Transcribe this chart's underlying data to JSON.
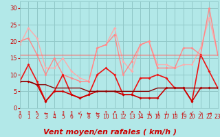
{
  "bg_color": "#b2e8e8",
  "grid_color": "#90c8c8",
  "xlabel": "Vent moyen/en rafales ( km/h )",
  "xlabel_color": "#cc0000",
  "xlabel_fontsize": 8,
  "tick_color": "#cc0000",
  "ylim": [
    0,
    32
  ],
  "xlim": [
    0,
    23
  ],
  "yticks": [
    0,
    5,
    10,
    15,
    20,
    25,
    30
  ],
  "xticks": [
    0,
    1,
    2,
    3,
    4,
    5,
    6,
    7,
    8,
    9,
    10,
    11,
    12,
    13,
    14,
    15,
    16,
    17,
    18,
    19,
    20,
    21,
    22,
    23
  ],
  "lines": [
    {
      "y": [
        19,
        24,
        21,
        12,
        12,
        15,
        11,
        9,
        8,
        18,
        19,
        24,
        14,
        11,
        19,
        20,
        13,
        13,
        12,
        13,
        13,
        18,
        27,
        16
      ],
      "color": "#ffaaaa",
      "lw": 1.0,
      "marker": "D",
      "ms": 2.0,
      "alpha": 1.0
    },
    {
      "y": [
        20,
        21,
        16,
        10,
        15,
        10,
        9,
        8,
        8,
        18,
        19,
        22,
        10,
        14,
        19,
        20,
        12,
        12,
        12,
        18,
        18,
        16,
        30,
        16
      ],
      "color": "#ff8888",
      "lw": 1.0,
      "marker": "D",
      "ms": 2.0,
      "alpha": 1.0
    },
    {
      "y": [
        8,
        13,
        8,
        2,
        5,
        10,
        4,
        3,
        4,
        10,
        12,
        10,
        4,
        4,
        9,
        9,
        10,
        9,
        6,
        6,
        2,
        16,
        11,
        6
      ],
      "color": "#ee1111",
      "lw": 1.2,
      "marker": "D",
      "ms": 2.0,
      "alpha": 1.0
    },
    {
      "y": [
        8,
        8,
        7,
        2,
        5,
        5,
        4,
        3,
        4,
        5,
        5,
        5,
        4,
        4,
        3,
        3,
        3,
        6,
        6,
        6,
        2,
        6,
        6,
        6
      ],
      "color": "#cc0000",
      "lw": 1.2,
      "marker": "D",
      "ms": 2.0,
      "alpha": 1.0
    },
    {
      "y": [
        8,
        8,
        7,
        7,
        6,
        6,
        6,
        6,
        5,
        5,
        5,
        5,
        5,
        5,
        5,
        5,
        6,
        6,
        6,
        6,
        6,
        6,
        6,
        6
      ],
      "color": "#880000",
      "lw": 1.0,
      "marker": null,
      "ms": 0,
      "alpha": 1.0
    },
    {
      "y": [
        16,
        16,
        16,
        16,
        16,
        16,
        16,
        16,
        16,
        16,
        16,
        16,
        16,
        16,
        16,
        16,
        16,
        16,
        16,
        16,
        16,
        16,
        16,
        16
      ],
      "color": "#ff6666",
      "lw": 1.0,
      "marker": null,
      "ms": 0,
      "alpha": 0.8
    }
  ],
  "wind_arrows": [
    "↑",
    "↑",
    "↖",
    "←",
    "↓",
    "↑",
    "↑",
    "↙",
    "←",
    "←",
    "↑",
    "↗",
    "↑",
    "↗",
    "↖",
    "↓",
    "↓",
    "↓",
    "↓",
    "↙",
    "↙",
    "↘",
    "→"
  ],
  "arrow_color": "#cc0000",
  "arrow_fontsize": 5.5
}
